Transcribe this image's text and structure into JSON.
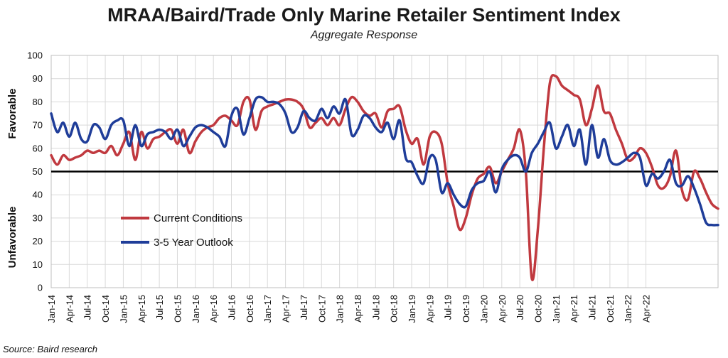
{
  "chart_data": {
    "type": "line",
    "title": "MRAA/Baird/Trade Only Marine Retailer Sentiment Index",
    "subtitle": "Aggregate Response",
    "ylabel_top": "Favorable",
    "ylabel_bottom": "Unfavorable",
    "source": "Source: Baird research",
    "ylim": [
      0,
      100
    ],
    "yticks": [
      0,
      10,
      20,
      30,
      40,
      50,
      60,
      70,
      80,
      90,
      100
    ],
    "reference_line": 50,
    "grid": true,
    "legend_position": "lower-left",
    "x_start": "Jan-14",
    "x_end": "May-22",
    "xtick_labels": [
      "Jan-14",
      "Apr-14",
      "Jul-14",
      "Oct-14",
      "Jan-15",
      "Apr-15",
      "Jul-15",
      "Oct-15",
      "Jan-16",
      "Apr-16",
      "Jul-16",
      "Oct-16",
      "Jan-17",
      "Apr-17",
      "Jul-17",
      "Oct-17",
      "Jan-18",
      "Apr-18",
      "Jul-18",
      "Oct-18",
      "Jan-19",
      "Apr-19",
      "Jul-19",
      "Oct-19",
      "Jan-20",
      "Apr-20",
      "Jul-20",
      "Oct-20",
      "Jan-21",
      "Apr-21",
      "Jul-21",
      "Oct-21",
      "Jan-22",
      "Apr-22"
    ],
    "series": [
      {
        "name": "Current Conditions",
        "color": "#c0393f",
        "values": [
          57,
          53,
          57,
          55,
          56,
          57,
          59,
          58,
          59,
          58,
          61,
          57,
          62,
          67,
          55,
          67,
          60,
          64,
          65,
          67,
          68,
          62,
          68,
          58,
          63,
          67,
          69,
          70,
          73,
          74,
          72,
          70,
          80,
          81,
          68,
          76,
          78,
          79,
          80,
          81,
          81,
          80,
          77,
          69,
          71,
          73,
          70,
          73,
          70,
          77,
          82,
          80,
          76,
          74,
          75,
          69,
          76,
          77,
          78,
          68,
          62,
          64,
          53,
          65,
          67,
          62,
          45,
          35,
          25,
          30,
          40,
          47,
          49,
          52,
          45,
          50,
          55,
          60,
          68,
          50,
          4,
          25,
          60,
          88,
          91,
          87,
          85,
          83,
          81,
          70,
          77,
          87,
          76,
          75,
          68,
          62,
          55,
          56,
          60,
          58,
          52,
          44,
          43,
          48,
          59,
          42,
          38,
          50,
          47,
          41,
          36,
          34
        ],
        "labels": []
      },
      {
        "name": "3-5 Year Outlook",
        "color": "#1f3d99",
        "values": [
          75,
          67,
          71,
          65,
          71,
          64,
          63,
          70,
          69,
          64,
          70,
          72,
          72,
          61,
          70,
          61,
          66,
          67,
          68,
          67,
          64,
          68,
          61,
          65,
          69,
          70,
          69,
          67,
          65,
          61,
          74,
          77,
          66,
          73,
          81,
          82,
          80,
          80,
          79,
          75,
          67,
          69,
          76,
          73,
          72,
          77,
          73,
          78,
          75,
          81,
          66,
          68,
          74,
          73,
          69,
          67,
          71,
          64,
          72,
          56,
          54,
          48,
          45,
          56,
          55,
          41,
          45,
          40,
          36,
          35,
          42,
          45,
          46,
          50,
          41,
          51,
          55,
          57,
          56,
          50,
          58,
          62,
          67,
          71,
          60,
          65,
          70,
          61,
          68,
          53,
          70,
          56,
          64,
          55,
          53,
          54,
          56,
          58,
          56,
          44,
          49,
          47,
          50,
          55,
          45,
          44,
          48,
          43,
          36,
          28,
          27,
          27
        ],
        "labels": []
      }
    ]
  }
}
